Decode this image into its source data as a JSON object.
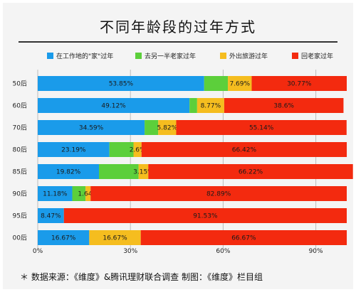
{
  "chart_data": {
    "type": "bar",
    "orientation": "horizontal",
    "stacked": true,
    "title": "不同年龄段的过年方式",
    "categories": [
      "50后",
      "60后",
      "70后",
      "80后",
      "85后",
      "90后",
      "95后",
      "00后"
    ],
    "series": [
      {
        "name": "在工作地的\"家\"过年",
        "color": "#1a9bea",
        "values": [
          53.85,
          49.12,
          34.59,
          23.19,
          19.82,
          11.18,
          8.47,
          16.67
        ],
        "labels": [
          "53.85%",
          "49.12%",
          "34.59%",
          "23.19%",
          "19.82%",
          "11.18%",
          "8.47%",
          "16.67%"
        ]
      },
      {
        "name": "去另一半老家过年",
        "color": "#5ccf3b",
        "values": [
          7.69,
          2.46,
          4.4,
          7.8,
          12.81,
          4.29,
          0,
          0
        ],
        "labels": [
          "",
          "",
          "",
          "",
          "",
          "",
          "",
          ""
        ]
      },
      {
        "name": "外出旅游过年",
        "color": "#f5bd1f",
        "values": [
          7.69,
          8.77,
          5.82,
          2.6,
          3.15,
          1.64,
          0,
          16.67
        ],
        "labels": [
          "7.69%",
          "8.77%",
          "5.82%",
          "2.6%",
          "3.15%",
          "1.64%",
          "",
          "16.67%"
        ]
      },
      {
        "name": "回老家过年",
        "color": "#f32a0f",
        "values": [
          30.77,
          38.6,
          55.14,
          66.42,
          66.22,
          82.89,
          91.53,
          66.67
        ],
        "labels": [
          "30.77%",
          "38.6%",
          "55.14%",
          "66.42%",
          "66.22%",
          "82.89%",
          "91.53%",
          "66.67%"
        ]
      }
    ],
    "xlim": [
      0,
      100
    ],
    "xticks": [
      0,
      30,
      60,
      90
    ],
    "xtick_labels": [
      "0%",
      "30%",
      "60%",
      "90%"
    ],
    "legend_position": "top"
  },
  "footer": "＊ 数据来源：《维度》&腾讯理财联合调查   制图：《维度》栏目组"
}
